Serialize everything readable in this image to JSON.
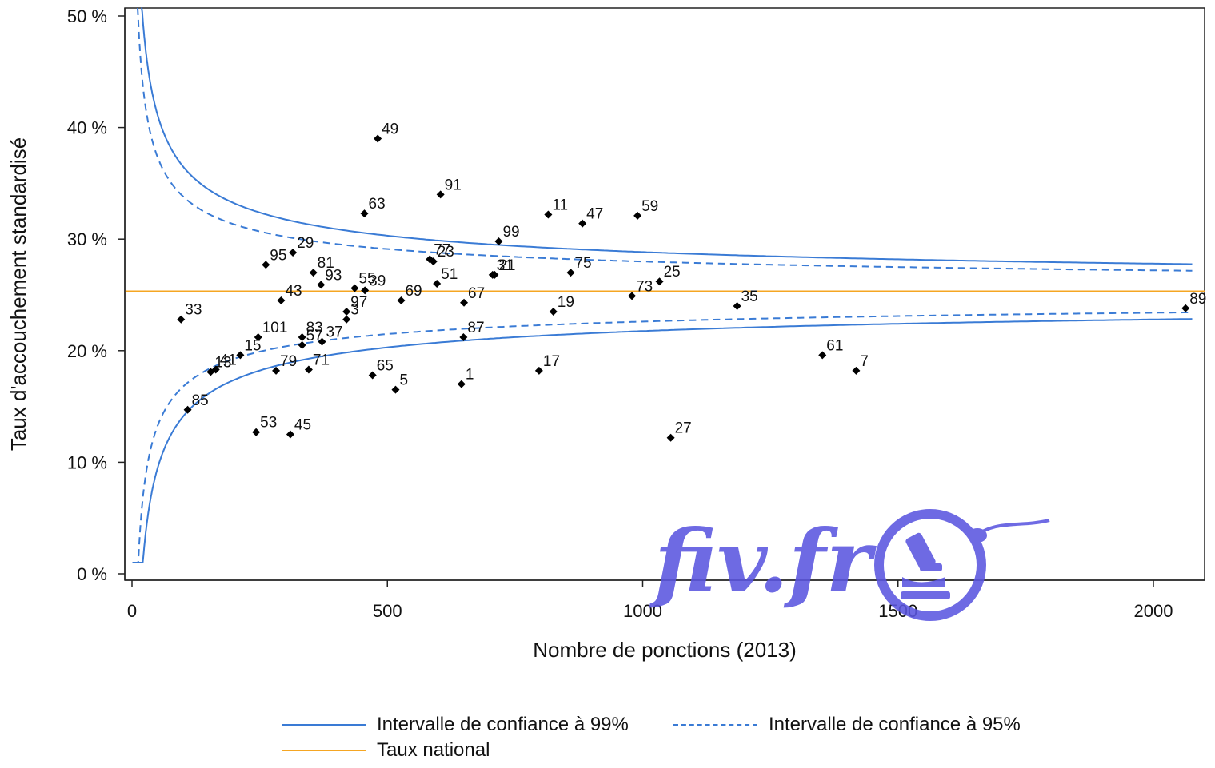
{
  "chart_data": {
    "type": "scatter",
    "xlabel": "Nombre de ponctions (2013)",
    "ylabel": "Taux d'accouchement standardisé",
    "xlim": [
      -10,
      2120
    ],
    "ylim": [
      0,
      50
    ],
    "x_ticks": [
      0,
      500,
      1000,
      1500,
      2000
    ],
    "x_tick_labels": [
      "0",
      "500",
      "1000",
      "1500",
      "2000"
    ],
    "y_ticks": [
      0,
      10,
      20,
      30,
      40,
      50
    ],
    "y_tick_labels": [
      "0 %",
      "10 %",
      "20 %",
      "30 %",
      "40 %",
      "50 %"
    ],
    "national_rate": 25.3,
    "national_color": "#f5a623",
    "ci_color": "#3a7bd5",
    "point_color": "#000000",
    "grid": false,
    "legend_position": "bottom",
    "legend": [
      {
        "label": "Intervalle de confiance à 99%",
        "style": "solid"
      },
      {
        "label": "Intervalle de confiance à 95%",
        "style": "dashed"
      },
      {
        "label": "Taux national",
        "style": "national"
      }
    ],
    "points": [
      {
        "label": "1",
        "x": 645,
        "y": 17.0
      },
      {
        "label": "3",
        "x": 420,
        "y": 22.8
      },
      {
        "label": "5",
        "x": 516,
        "y": 16.5
      },
      {
        "label": "7",
        "x": 1418,
        "y": 18.2
      },
      {
        "label": "11",
        "x": 815,
        "y": 32.2
      },
      {
        "label": "13",
        "x": 154,
        "y": 18.1
      },
      {
        "label": "15",
        "x": 212,
        "y": 19.6
      },
      {
        "label": "17",
        "x": 797,
        "y": 18.2
      },
      {
        "label": "19",
        "x": 825,
        "y": 23.5
      },
      {
        "label": "21",
        "x": 710,
        "y": 26.8
      },
      {
        "label": "23",
        "x": 590,
        "y": 28.0
      },
      {
        "label": "25",
        "x": 1033,
        "y": 26.2
      },
      {
        "label": "27",
        "x": 1055,
        "y": 12.2
      },
      {
        "label": "29",
        "x": 315,
        "y": 28.8
      },
      {
        "label": "31",
        "x": 706,
        "y": 26.8
      },
      {
        "label": "33",
        "x": 96,
        "y": 22.8
      },
      {
        "label": "35",
        "x": 1185,
        "y": 24.0
      },
      {
        "label": "37",
        "x": 372,
        "y": 20.8
      },
      {
        "label": "39",
        "x": 456,
        "y": 25.4
      },
      {
        "label": "41",
        "x": 164,
        "y": 18.3
      },
      {
        "label": "43",
        "x": 292,
        "y": 24.5
      },
      {
        "label": "45",
        "x": 310,
        "y": 12.5
      },
      {
        "label": "47",
        "x": 882,
        "y": 31.4
      },
      {
        "label": "49",
        "x": 481,
        "y": 39.0
      },
      {
        "label": "51",
        "x": 597,
        "y": 26.0
      },
      {
        "label": "53",
        "x": 243,
        "y": 12.7
      },
      {
        "label": "55",
        "x": 436,
        "y": 25.6
      },
      {
        "label": "57",
        "x": 333,
        "y": 20.5
      },
      {
        "label": "59",
        "x": 990,
        "y": 32.1
      },
      {
        "label": "61",
        "x": 1352,
        "y": 19.6
      },
      {
        "label": "63",
        "x": 455,
        "y": 32.3
      },
      {
        "label": "65",
        "x": 471,
        "y": 17.8
      },
      {
        "label": "67",
        "x": 650,
        "y": 24.3
      },
      {
        "label": "69",
        "x": 527,
        "y": 24.5
      },
      {
        "label": "71",
        "x": 346,
        "y": 18.3
      },
      {
        "label": "73",
        "x": 979,
        "y": 24.9
      },
      {
        "label": "75",
        "x": 859,
        "y": 27.0
      },
      {
        "label": "77",
        "x": 583,
        "y": 28.2
      },
      {
        "label": "79",
        "x": 282,
        "y": 18.2
      },
      {
        "label": "81",
        "x": 355,
        "y": 27.0
      },
      {
        "label": "83",
        "x": 333,
        "y": 21.2
      },
      {
        "label": "85",
        "x": 109,
        "y": 14.7
      },
      {
        "label": "87",
        "x": 649,
        "y": 21.2
      },
      {
        "label": "89",
        "x": 2063,
        "y": 23.8
      },
      {
        "label": "91",
        "x": 604,
        "y": 34.0
      },
      {
        "label": "93",
        "x": 370,
        "y": 25.9
      },
      {
        "label": "95",
        "x": 262,
        "y": 27.7
      },
      {
        "label": "97",
        "x": 420,
        "y": 23.5
      },
      {
        "label": "99",
        "x": 718,
        "y": 29.8
      },
      {
        "label": "101",
        "x": 247,
        "y": 21.2
      }
    ]
  },
  "watermark": {
    "text": "fiv.fr",
    "color": "#5b56e0"
  }
}
